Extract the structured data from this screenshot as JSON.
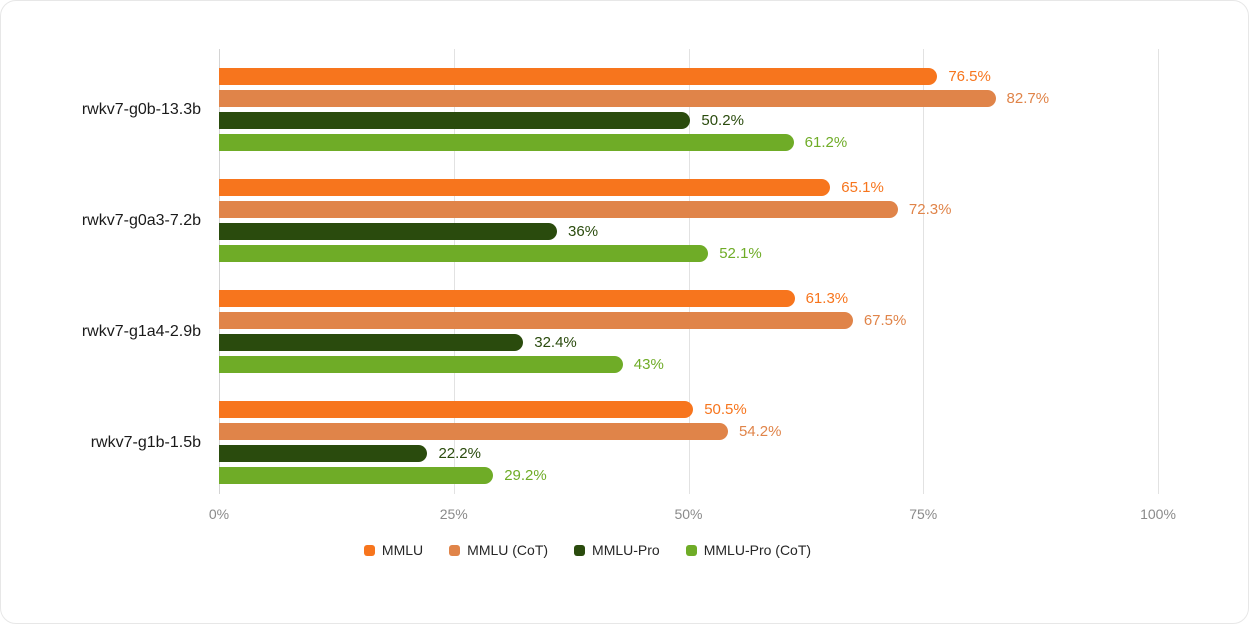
{
  "chart_data": {
    "type": "bar",
    "orientation": "horizontal",
    "title": "",
    "categories": [
      "rwkv7-g0b-13.3b",
      "rwkv7-g0a3-7.2b",
      "rwkv7-g1a4-2.9b",
      "rwkv7-g1b-1.5b"
    ],
    "series": [
      {
        "name": "MMLU",
        "color": "#F7751D",
        "values": [
          76.5,
          65.1,
          61.3,
          50.5
        ],
        "labels": [
          "76.5%",
          "65.1%",
          "61.3%",
          "50.5%"
        ]
      },
      {
        "name": "MMLU (CoT)",
        "color": "#E08449",
        "values": [
          82.7,
          72.3,
          67.5,
          54.2
        ],
        "labels": [
          "82.7%",
          "72.3%",
          "67.5%",
          "54.2%"
        ]
      },
      {
        "name": "MMLU-Pro",
        "color": "#2A4B0D",
        "values": [
          50.2,
          36.0,
          32.4,
          22.2
        ],
        "labels": [
          "50.2%",
          "36%",
          "32.4%",
          "22.2%"
        ]
      },
      {
        "name": "MMLU-Pro (CoT)",
        "color": "#6FAC27",
        "values": [
          61.2,
          52.1,
          43.0,
          29.2
        ],
        "labels": [
          "61.2%",
          "52.1%",
          "43%",
          "29.2%"
        ]
      }
    ],
    "x_axis": {
      "range": [
        0,
        100
      ],
      "tick_values": [
        0,
        25,
        50,
        75,
        100
      ],
      "tick_labels": [
        "0%",
        "25%",
        "50%",
        "75%",
        "100%"
      ]
    },
    "legend": {
      "position": "bottom",
      "items": [
        "MMLU",
        "MMLU (CoT)",
        "MMLU-Pro",
        "MMLU-Pro (CoT)"
      ]
    },
    "grid": true,
    "colors": {
      "grid_line": "#E2E2E2",
      "axis_line": "#D4D4D4",
      "tick_text": "#8A8A8A",
      "category_text": "#1A1A1A",
      "legend_text": "#262626",
      "card_border": "#E7E7E7",
      "background": "#FFFFFF"
    }
  }
}
